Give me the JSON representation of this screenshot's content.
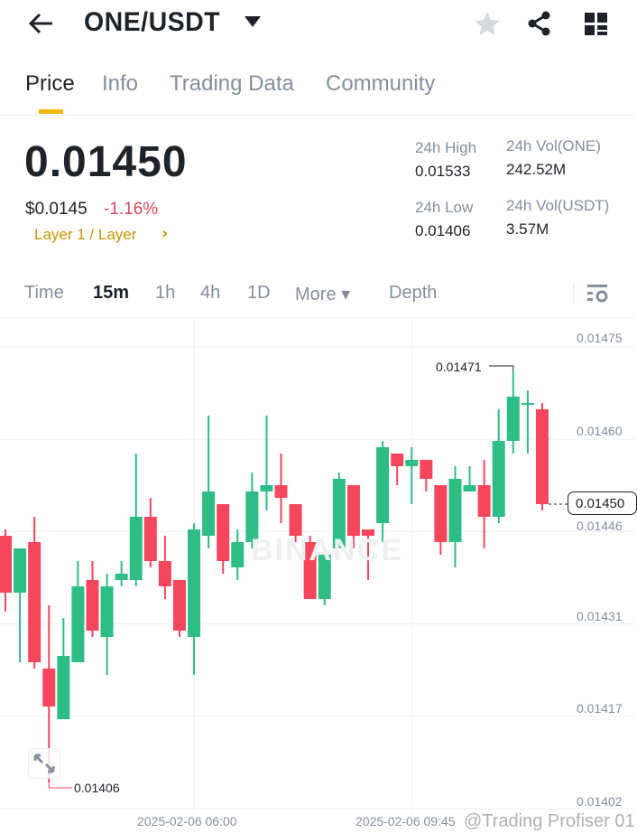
{
  "header": {
    "title": "ONE/USDT",
    "icons": [
      "back-arrow-icon",
      "dropdown-caret-icon",
      "star-icon",
      "share-icon",
      "grid-icon"
    ]
  },
  "tabs": [
    {
      "label": "Price",
      "active": true
    },
    {
      "label": "Info"
    },
    {
      "label": "Trading Data"
    },
    {
      "label": "Community"
    }
  ],
  "ticker": {
    "last_price": "0.01450",
    "usd_price": "$0.0145",
    "change": "-1.16%",
    "category": "Layer 1 / Layer",
    "category_chevron": "›",
    "high_label": "24h High",
    "high": "0.01533",
    "low_label": "24h Low",
    "low": "0.01406",
    "vol_base_label": "24h Vol(ONE)",
    "vol_base": "242.52M",
    "vol_quote_label": "24h Vol(USDT)",
    "vol_quote": "3.57M"
  },
  "intervals": [
    {
      "label": "Time"
    },
    {
      "label": "15m",
      "active": true
    },
    {
      "label": "1h"
    },
    {
      "label": "4h"
    },
    {
      "label": "1D"
    },
    {
      "label": "More ▾"
    },
    {
      "label": "Depth"
    }
  ],
  "colors": {
    "up": "#2ebd85",
    "down": "#f6465d",
    "accent": "#f0b90b",
    "change": "#d9485f"
  },
  "chart_data": {
    "type": "candlestick",
    "interval": "15m",
    "y_ticks": [
      "0.01475",
      "0.01460",
      "0.01446",
      "0.01431",
      "0.01417",
      "0.01402"
    ],
    "ylim": [
      0.01402,
      0.01475
    ],
    "x_ticks": [
      "2025-02-06 06:00",
      "2025-02-06 09:45"
    ],
    "max_label": "0.01471",
    "min_label": "0.01406",
    "current_price_label": "0.01450",
    "watermark": "BINANCE",
    "ohlc": [
      [
        0.01445,
        0.01446,
        0.01433,
        0.01436
      ],
      [
        0.01436,
        0.01443,
        0.01425,
        0.01443
      ],
      [
        0.01444,
        0.01448,
        0.01424,
        0.01425
      ],
      [
        0.01424,
        0.01434,
        0.01406,
        0.01418
      ],
      [
        0.01416,
        0.01432,
        0.01416,
        0.01426
      ],
      [
        0.01425,
        0.01441,
        0.01425,
        0.01437
      ],
      [
        0.01438,
        0.01441,
        0.01429,
        0.0143
      ],
      [
        0.01429,
        0.01439,
        0.01423,
        0.01437
      ],
      [
        0.01438,
        0.01441,
        0.01437,
        0.01439
      ],
      [
        0.01438,
        0.01458,
        0.01437,
        0.01448
      ],
      [
        0.01448,
        0.01451,
        0.0144,
        0.01441
      ],
      [
        0.01441,
        0.01445,
        0.01435,
        0.01437
      ],
      [
        0.01438,
        0.01438,
        0.01429,
        0.0143
      ],
      [
        0.01429,
        0.01447,
        0.01423,
        0.01446
      ],
      [
        0.01445,
        0.01464,
        0.01443,
        0.01452
      ],
      [
        0.0145,
        0.0145,
        0.01439,
        0.01441
      ],
      [
        0.0144,
        0.01446,
        0.01438,
        0.01444
      ],
      [
        0.01444,
        0.01455,
        0.01443,
        0.01452
      ],
      [
        0.01452,
        0.01464,
        0.01449,
        0.01453
      ],
      [
        0.01453,
        0.01458,
        0.01447,
        0.01451
      ],
      [
        0.0145,
        0.0145,
        0.01444,
        0.01445
      ],
      [
        0.01444,
        0.01445,
        0.01435,
        0.01435
      ],
      [
        0.01435,
        0.01442,
        0.01434,
        0.01442
      ],
      [
        0.01443,
        0.01455,
        0.01443,
        0.01454
      ],
      [
        0.01453,
        0.01453,
        0.01443,
        0.01445
      ],
      [
        0.01446,
        0.01446,
        0.01438,
        0.01445
      ],
      [
        0.01447,
        0.0146,
        0.01444,
        0.01459
      ],
      [
        0.01458,
        0.01458,
        0.01453,
        0.01456
      ],
      [
        0.01456,
        0.01459,
        0.0145,
        0.01457
      ],
      [
        0.01457,
        0.01457,
        0.01452,
        0.01454
      ],
      [
        0.01453,
        0.01453,
        0.01442,
        0.01444
      ],
      [
        0.01444,
        0.01456,
        0.0144,
        0.01454
      ],
      [
        0.01452,
        0.01456,
        0.01452,
        0.01453
      ],
      [
        0.01453,
        0.01457,
        0.01443,
        0.01448
      ],
      [
        0.01448,
        0.01465,
        0.01447,
        0.0146
      ],
      [
        0.0146,
        0.01471,
        0.01458,
        0.01467
      ],
      [
        0.01466,
        0.01468,
        0.01458,
        0.01466
      ],
      [
        0.01465,
        0.01466,
        0.01449,
        0.0145
      ]
    ]
  },
  "overlay_watermark": "@Trading Profiser 01"
}
